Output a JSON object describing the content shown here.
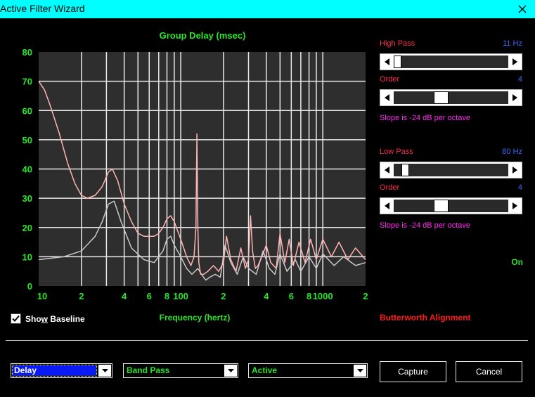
{
  "window": {
    "title": "Active Filter Wizard"
  },
  "colors": {
    "titlebar": "#00ffff",
    "accent_green": "#27e627",
    "label_red": "#ff2d4e",
    "value_blue": "#3d6bff",
    "slope_magenta": "#ff2df2",
    "baseline_curve": "#c8c8c8",
    "filtered_curve": "#ffb4b4"
  },
  "icons": {
    "close": "close-icon",
    "checkbox": "checkmark-icon",
    "arrows": [
      "arrow-left-icon",
      "arrow-right-icon",
      "chevron-down-icon"
    ]
  },
  "chart_data": {
    "type": "line",
    "title": "Group Delay (msec)",
    "xlabel": "Frequency (hertz)",
    "ylabel": "",
    "x_scale": "log",
    "xlim": [
      10,
      2000
    ],
    "ylim": [
      0,
      80
    ],
    "grid": true,
    "y_ticks": [
      "80",
      "70",
      "60",
      "50",
      "40",
      "30",
      "20",
      "10",
      "0"
    ],
    "x_tick_labels": [
      {
        "x": 10,
        "label": "10"
      },
      {
        "x": 20,
        "label": "2"
      },
      {
        "x": 40,
        "label": "4"
      },
      {
        "x": 60,
        "label": "6"
      },
      {
        "x": 80,
        "label": "8"
      },
      {
        "x": 100,
        "label": "100"
      },
      {
        "x": 200,
        "label": "2"
      },
      {
        "x": 400,
        "label": "4"
      },
      {
        "x": 600,
        "label": "6"
      },
      {
        "x": 800,
        "label": "8"
      },
      {
        "x": 1000,
        "label": "1000"
      },
      {
        "x": 2000,
        "label": "2"
      }
    ],
    "series": [
      {
        "color": "#c8c8c8",
        "x": [
          10,
          15,
          20,
          25,
          28,
          31,
          34,
          38,
          45,
          55,
          65,
          75,
          80,
          85,
          90,
          100,
          110,
          120,
          132,
          140,
          150,
          160,
          175,
          190,
          205,
          225,
          250,
          275,
          300,
          340,
          380,
          420,
          460,
          500,
          560,
          640,
          700,
          800,
          900,
          1000,
          1200,
          1400,
          1700,
          2000
        ],
        "y": [
          9,
          10,
          12,
          17,
          22,
          28,
          29,
          22,
          13,
          9,
          8,
          12,
          16,
          17,
          14,
          10,
          6,
          4,
          6,
          4,
          2,
          3,
          4,
          3,
          14,
          8,
          4,
          10,
          6,
          4,
          12,
          6,
          4,
          11,
          5,
          9,
          5,
          10,
          6,
          11,
          7,
          10,
          7,
          8
        ]
      },
      {
        "color": "#ffb4b4",
        "x": [
          10,
          11,
          12,
          14,
          16,
          18,
          20,
          22,
          25,
          28,
          31,
          33,
          36,
          40,
          45,
          50,
          55,
          60,
          65,
          70,
          75,
          80,
          85,
          90,
          100,
          110,
          118,
          124,
          128,
          130,
          132,
          134,
          138,
          145,
          155,
          170,
          185,
          200,
          210,
          225,
          245,
          265,
          285,
          300,
          310,
          320,
          335,
          350,
          380,
          400,
          430,
          470,
          500,
          540,
          580,
          620,
          680,
          750,
          820,
          900,
          1000,
          1150,
          1300,
          1500,
          1700,
          2000
        ],
        "y": [
          70,
          67,
          62,
          52,
          42,
          35,
          31,
          30,
          31,
          34,
          39,
          40,
          36,
          28,
          22,
          18,
          17,
          17,
          17,
          18,
          20,
          23,
          24,
          22,
          16,
          10,
          7,
          10,
          20,
          52,
          20,
          8,
          4,
          4,
          5,
          7,
          5,
          8,
          17,
          9,
          5,
          13,
          6,
          9,
          24,
          12,
          6,
          7,
          11,
          14,
          8,
          6,
          18,
          8,
          16,
          7,
          15,
          8,
          16,
          9,
          16,
          10,
          15,
          9,
          13,
          9
        ]
      }
    ]
  },
  "high_pass": {
    "label": "High Pass",
    "value": "11 Hz",
    "order_label": "Order",
    "order_value": "4",
    "slope": "Slope is -24 dB per octave",
    "position": 0.0,
    "order_position": 0.4
  },
  "low_pass": {
    "label": "Low Pass",
    "value": "80 Hz",
    "order_label": "Order",
    "order_value": "4",
    "slope": "Slope is -24 dB per octave",
    "position": 0.07,
    "order_position": 0.4
  },
  "on_label": "On",
  "show_baseline": {
    "label_pre": "Sho",
    "label_underlined": "w",
    "label_post": " Baseline",
    "checked": true
  },
  "alignment_label": "Butterworth Alignment",
  "dropdowns": {
    "measure": "Delay",
    "filter_type": "Band Pass",
    "filter_kind": "Active"
  },
  "buttons": {
    "capture": "Capture",
    "cancel": "Cancel"
  }
}
